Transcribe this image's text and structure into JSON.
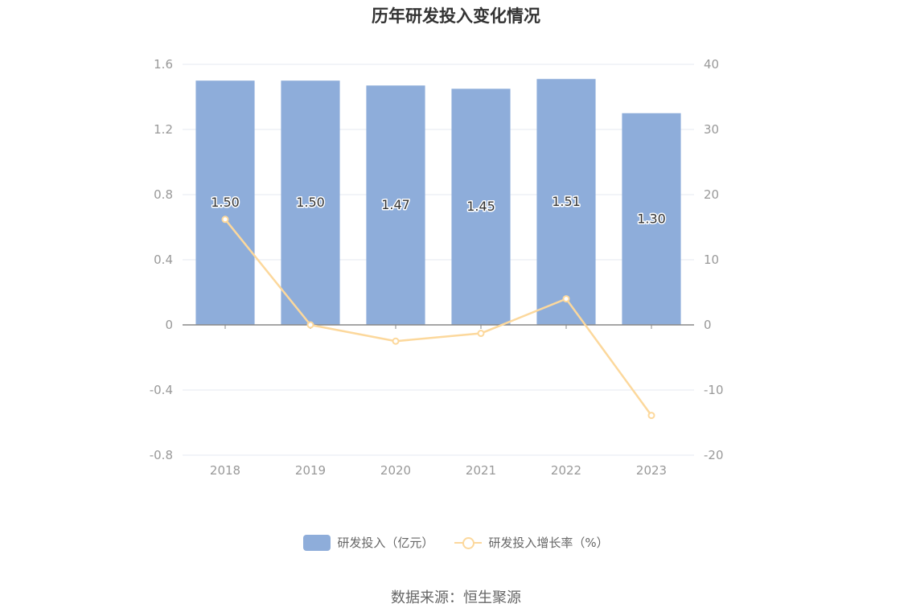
{
  "title": "历年研发投入变化情况",
  "source": "数据来源：恒生聚源",
  "legend": {
    "bar_label": "研发投入（亿元）",
    "line_label": "研发投入增长率（%）"
  },
  "colors": {
    "bar": "#8eadda",
    "line": "#fcd89c",
    "grid": "#e6e8f0",
    "axis": "#888888"
  },
  "chart_data": {
    "type": "bar",
    "title": "历年研发投入变化情况",
    "categories": [
      "2018",
      "2019",
      "2020",
      "2021",
      "2022",
      "2023"
    ],
    "series": [
      {
        "name": "研发投入（亿元）",
        "type": "bar",
        "axis": "left",
        "values": [
          1.5,
          1.5,
          1.47,
          1.45,
          1.51,
          1.3
        ]
      },
      {
        "name": "研发投入增长率（%）",
        "type": "line",
        "axis": "right",
        "values": [
          16.2,
          0.0,
          -2.5,
          -1.3,
          4.0,
          -13.9
        ]
      }
    ],
    "bar_labels": [
      "1.50",
      "1.50",
      "1.47",
      "1.45",
      "1.51",
      "1.30"
    ],
    "y_left": {
      "range": [
        -0.8,
        1.6
      ],
      "ticks": [
        "1.6",
        "1.2",
        "0.8",
        "0.4",
        "0",
        "-0.4",
        "-0.8"
      ],
      "tick_values": [
        1.6,
        1.2,
        0.8,
        0.4,
        0,
        -0.4,
        -0.8
      ]
    },
    "y_right": {
      "range": [
        -20,
        40
      ],
      "ticks": [
        "40",
        "30",
        "20",
        "10",
        "0",
        "-10",
        "-20"
      ],
      "tick_values": [
        40,
        30,
        20,
        10,
        0,
        -10,
        -20
      ]
    },
    "grid": true,
    "legend_position": "bottom"
  }
}
